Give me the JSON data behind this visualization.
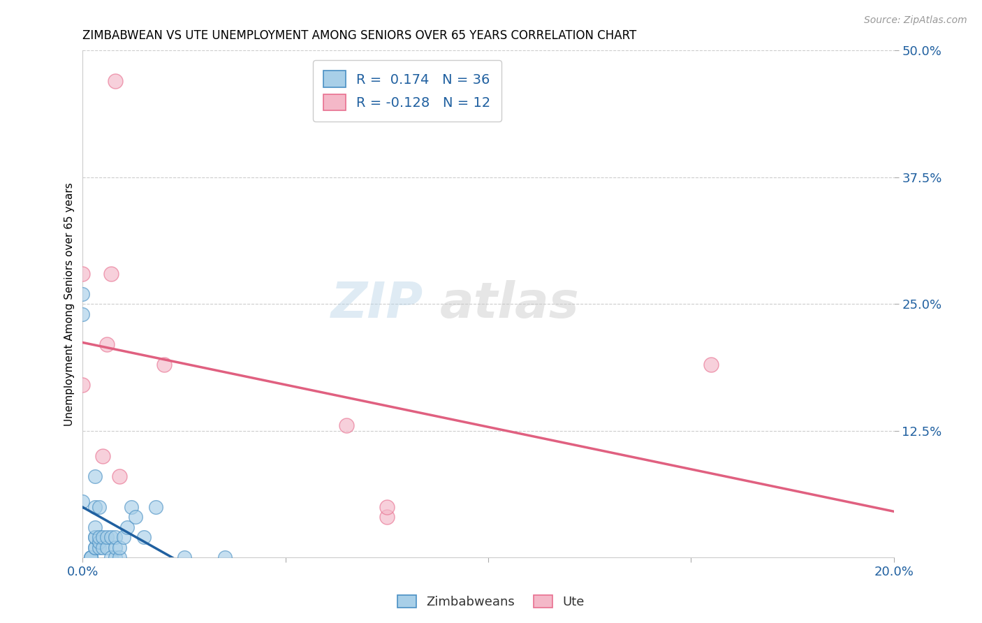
{
  "title": "ZIMBABWEAN VS UTE UNEMPLOYMENT AMONG SENIORS OVER 65 YEARS CORRELATION CHART",
  "source": "Source: ZipAtlas.com",
  "ylabel_label": "Unemployment Among Seniors over 65 years",
  "xlim": [
    0.0,
    0.2
  ],
  "ylim": [
    0.0,
    0.5
  ],
  "xticks": [
    0.0,
    0.05,
    0.1,
    0.15,
    0.2
  ],
  "xtick_labels": [
    "0.0%",
    "",
    "",
    "",
    "20.0%"
  ],
  "ytick_labels_right": [
    "12.5%",
    "25.0%",
    "37.5%",
    "50.0%"
  ],
  "yticks_right": [
    0.125,
    0.25,
    0.375,
    0.5
  ],
  "yticks_grid": [
    0.125,
    0.25,
    0.375,
    0.5
  ],
  "blue_fill": "#a8cfe8",
  "blue_edge": "#4a90c4",
  "pink_fill": "#f4b8c8",
  "pink_edge": "#e87090",
  "blue_line_color": "#2060a0",
  "pink_line_color": "#e06080",
  "dashed_line_color": "#80b0d8",
  "watermark_zip": "ZIP",
  "watermark_atlas": "atlas",
  "legend_r_blue": " 0.174",
  "legend_n_blue": "36",
  "legend_r_pink": "-0.128",
  "legend_n_pink": "12",
  "zimbabwean_x": [
    0.0,
    0.0,
    0.0,
    0.002,
    0.002,
    0.002,
    0.003,
    0.003,
    0.003,
    0.003,
    0.003,
    0.003,
    0.003,
    0.004,
    0.004,
    0.004,
    0.004,
    0.005,
    0.005,
    0.006,
    0.006,
    0.007,
    0.007,
    0.008,
    0.008,
    0.008,
    0.009,
    0.009,
    0.01,
    0.011,
    0.012,
    0.013,
    0.015,
    0.018,
    0.025,
    0.035
  ],
  "zimbabwean_y": [
    0.055,
    0.24,
    0.26,
    0.0,
    0.0,
    0.0,
    0.01,
    0.01,
    0.02,
    0.02,
    0.03,
    0.05,
    0.08,
    0.01,
    0.015,
    0.02,
    0.05,
    0.01,
    0.02,
    0.01,
    0.02,
    0.0,
    0.02,
    0.0,
    0.01,
    0.02,
    0.0,
    0.01,
    0.02,
    0.03,
    0.05,
    0.04,
    0.02,
    0.05,
    0.0,
    0.0
  ],
  "ute_x": [
    0.0,
    0.0,
    0.005,
    0.006,
    0.007,
    0.008,
    0.009,
    0.02,
    0.065,
    0.075,
    0.075,
    0.155
  ],
  "ute_y": [
    0.17,
    0.28,
    0.1,
    0.21,
    0.28,
    0.47,
    0.08,
    0.19,
    0.13,
    0.04,
    0.05,
    0.19
  ]
}
